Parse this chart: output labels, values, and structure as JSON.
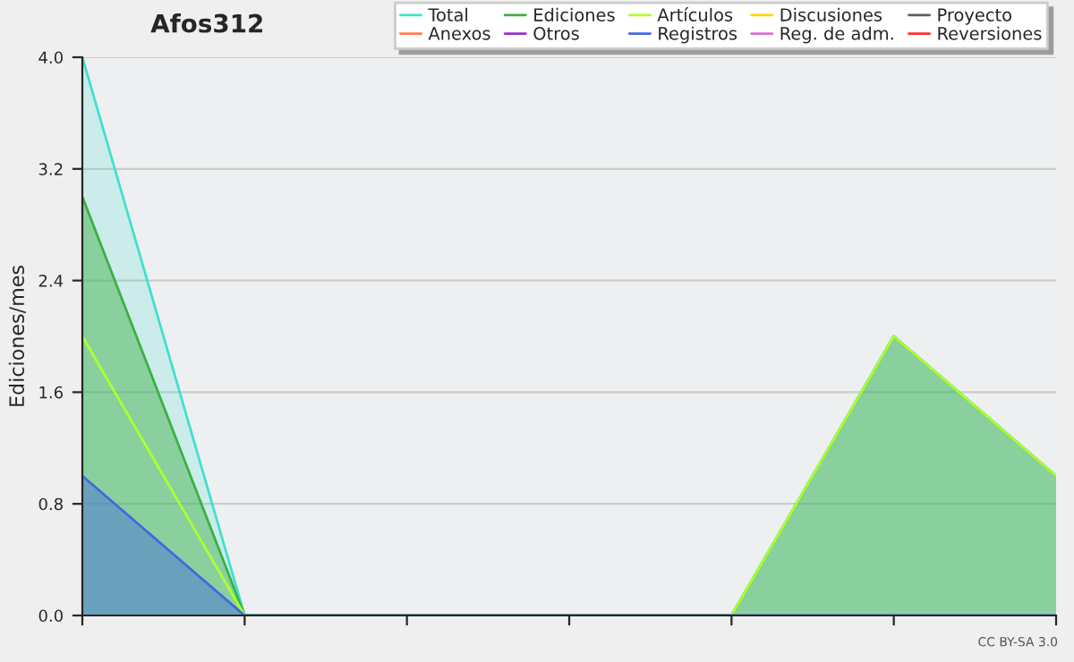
{
  "chart_data": {
    "type": "line",
    "title": "Afos312",
    "ylabel": "Ediciones/mes",
    "categories": [
      null,
      null,
      null,
      null,
      null,
      null,
      null
    ],
    "series": [
      {
        "name": "Total",
        "color": "#40e0d0",
        "type": "area",
        "values": [
          4,
          0,
          0,
          0,
          0,
          2,
          1
        ]
      },
      {
        "name": "Anexos",
        "color": "#ff7f50",
        "values": [
          null,
          null,
          null,
          null,
          null,
          null,
          null
        ]
      },
      {
        "name": "Ediciones",
        "color": "#3cb043",
        "type": "area",
        "values": [
          3,
          0,
          0,
          0,
          0,
          2,
          1
        ]
      },
      {
        "name": "Otros",
        "color": "#9932cc",
        "values": [
          null,
          null,
          null,
          null,
          null,
          null,
          null
        ]
      },
      {
        "name": "Artículos",
        "color": "#adff2f",
        "values": [
          2,
          0,
          0,
          0,
          0,
          2,
          1
        ]
      },
      {
        "name": "Registros",
        "color": "#4169e1",
        "type": "area",
        "values": [
          1,
          0,
          0,
          0,
          0,
          0,
          0
        ]
      },
      {
        "name": "Discusiones",
        "color": "#ffd700",
        "values": [
          null,
          null,
          null,
          null,
          null,
          null,
          null
        ]
      },
      {
        "name": "Reg. de adm.",
        "color": "#da70d6",
        "values": [
          null,
          null,
          null,
          null,
          null,
          null,
          null
        ]
      },
      {
        "name": "Proyecto",
        "color": "#606060",
        "values": [
          null,
          null,
          null,
          null,
          null,
          null,
          null
        ]
      },
      {
        "name": "Reversiones",
        "color": "#ff3030",
        "values": [
          null,
          null,
          null,
          null,
          null,
          null,
          null
        ]
      }
    ],
    "ylim": [
      0,
      4
    ],
    "yticks": [
      {
        "value": 0,
        "label": "0.0"
      },
      {
        "value": 0.8,
        "label": "0.8"
      },
      {
        "value": 1.6,
        "label": "1.6"
      },
      {
        "value": 2.4,
        "label": "2.4"
      },
      {
        "value": 3.2,
        "label": "3.2"
      },
      {
        "value": 4,
        "label": "4.0"
      }
    ],
    "grid": "y",
    "legend": "top right",
    "annotations": [
      "CC BY-SA 3.0"
    ]
  }
}
